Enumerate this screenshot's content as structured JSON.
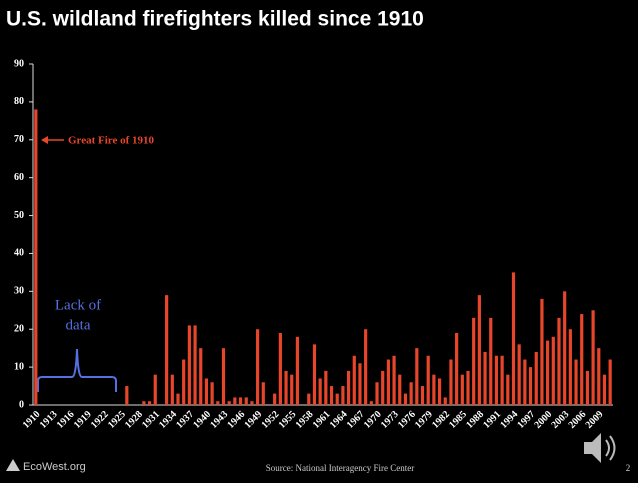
{
  "chart_data": {
    "type": "bar",
    "title": "U.S. wildland firefighters killed since 1910",
    "categories": [
      "1910",
      null,
      null,
      "1913",
      null,
      null,
      "1916",
      null,
      null,
      "1919",
      null,
      null,
      "1922",
      null,
      null,
      "1925",
      null,
      null,
      "1928",
      null,
      null,
      "1931",
      null,
      null,
      "1934",
      null,
      null,
      "1937",
      null,
      null,
      "1940",
      null,
      null,
      "1943",
      null,
      null,
      "1946",
      null,
      null,
      "1949",
      null,
      null,
      "1952",
      null,
      null,
      "1955",
      null,
      null,
      "1958",
      null,
      null,
      "1961",
      null,
      null,
      "1964",
      null,
      null,
      "1967",
      null,
      null,
      "1970",
      null,
      null,
      "1973",
      null,
      null,
      "1976",
      null,
      null,
      "1979",
      null,
      null,
      "1982",
      null,
      null,
      "1985",
      null,
      null,
      "1988",
      null,
      null,
      "1991",
      null,
      null,
      "1994",
      null,
      null,
      "1997",
      null,
      null,
      "2000",
      null,
      null,
      "2003",
      null,
      null,
      "2006",
      null,
      null,
      "2009",
      null,
      null
    ],
    "values": [
      78,
      null,
      null,
      null,
      null,
      null,
      null,
      null,
      null,
      null,
      null,
      null,
      null,
      null,
      null,
      null,
      5,
      0,
      0,
      1,
      1,
      8,
      0,
      29,
      8,
      3,
      12,
      21,
      21,
      15,
      7,
      6,
      1,
      15,
      1,
      2,
      2,
      2,
      1,
      20,
      6,
      0,
      3,
      19,
      9,
      8,
      18,
      0,
      3,
      16,
      7,
      9,
      5,
      3,
      5,
      9,
      13,
      11,
      20,
      1,
      6,
      9,
      12,
      13,
      8,
      3,
      6,
      15,
      5,
      13,
      8,
      7,
      2,
      12,
      19,
      8,
      9,
      23,
      29,
      14,
      23,
      13,
      13,
      8,
      35,
      16,
      12,
      10,
      14,
      28,
      17,
      18,
      23,
      30,
      20,
      12,
      24,
      9,
      25,
      15,
      8,
      12
    ],
    "color": "#e8462b",
    "ylim": [
      0,
      90
    ],
    "yticks": [
      0,
      10,
      20,
      30,
      40,
      50,
      60,
      70,
      80,
      90
    ],
    "grid": false,
    "annotations": [
      {
        "text": "Great Fire of 1910",
        "color": "#e8462b"
      },
      {
        "text": [
          "Lack of",
          "data"
        ],
        "color": "#5570e0"
      }
    ]
  },
  "footer": {
    "brand": "EcoWest.org",
    "source": "Source:  National Interagency Fire Center",
    "page_number": "2"
  }
}
